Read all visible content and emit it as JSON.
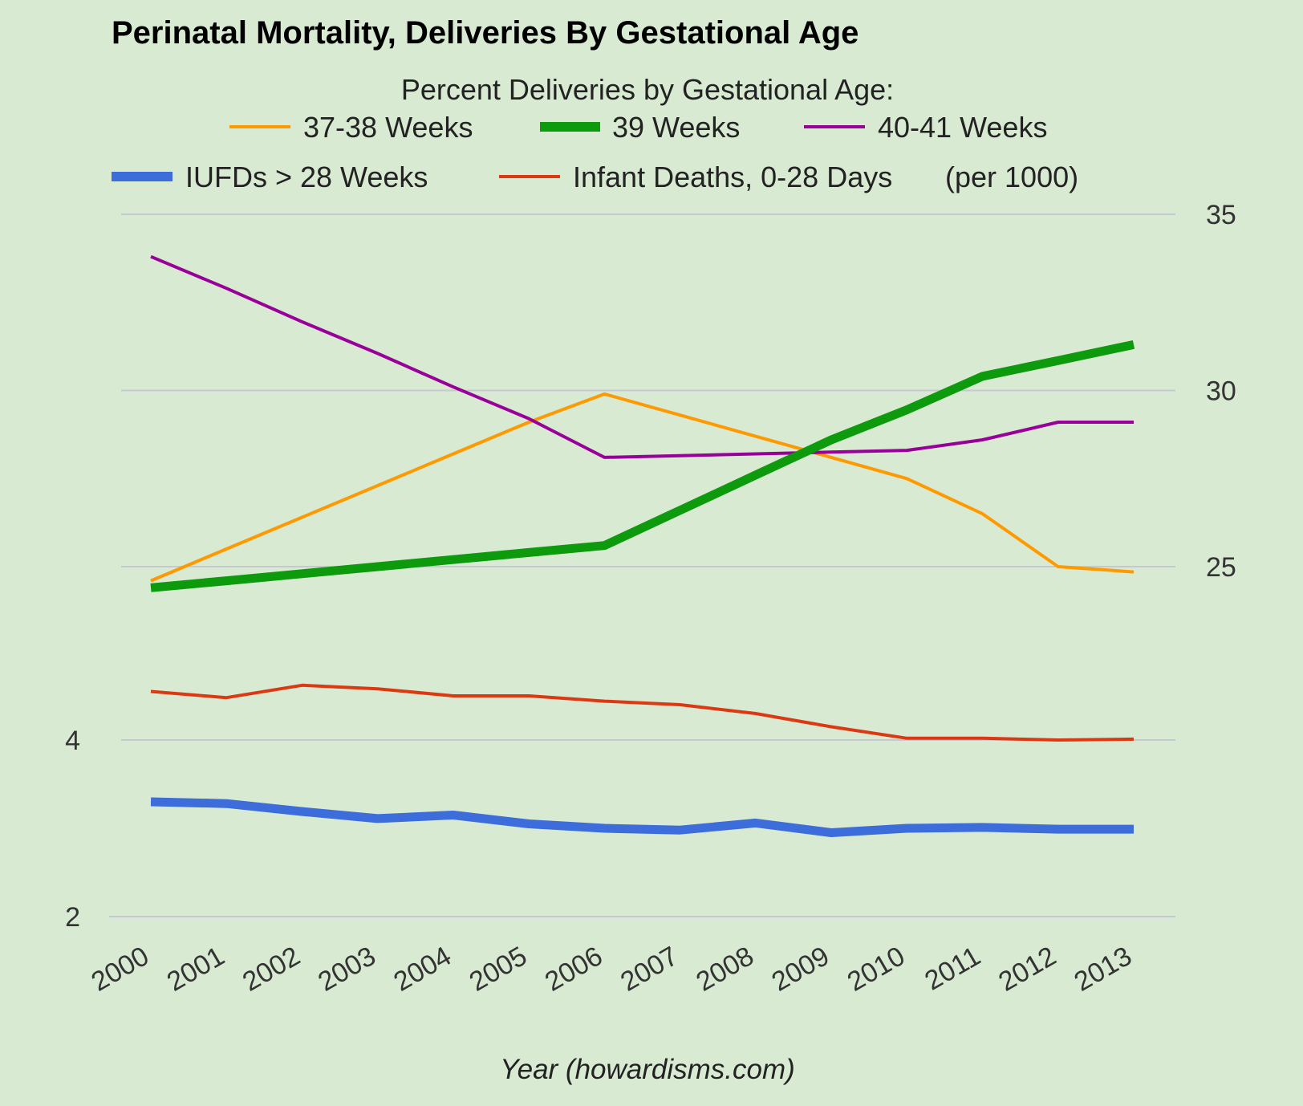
{
  "chart_data": {
    "type": "line",
    "title": "Perinatal Mortality, Deliveries By Gestational Age",
    "legend_heading": "Percent Deliveries by Gestational Age:",
    "legend_units_note": "(per 1000)",
    "xlabel": "Year (howardisms.com)",
    "x": [
      "2000",
      "2001",
      "2002",
      "2003",
      "2004",
      "2005",
      "2006",
      "2007",
      "2008",
      "2009",
      "2010",
      "2011",
      "2012",
      "2013"
    ],
    "right_axis": {
      "ticks": [
        "35",
        "30",
        "25"
      ],
      "ylim": [
        20,
        35
      ]
    },
    "left_axis": {
      "ticks": [
        "4",
        "2"
      ],
      "ylim": [
        2,
        6
      ]
    },
    "grid": true,
    "legend_position": "top",
    "series": [
      {
        "name": "37-38 Weeks",
        "axis": "right",
        "color": "#ff9900",
        "width": "thin",
        "values": [
          24.6,
          25.5,
          26.4,
          27.3,
          28.2,
          29.1,
          29.9,
          29.3,
          28.7,
          28.1,
          27.5,
          26.5,
          25.0,
          24.85
        ]
      },
      {
        "name": "39 Weeks",
        "axis": "right",
        "color": "#0d9a0d",
        "width": "thick",
        "values": [
          24.4,
          24.6,
          24.8,
          25.0,
          25.2,
          25.4,
          25.6,
          26.6,
          27.6,
          28.6,
          29.45,
          30.4,
          30.85,
          31.3
        ]
      },
      {
        "name": "40-41 Weeks",
        "axis": "right",
        "color": "#990099",
        "width": "thin",
        "values": [
          33.8,
          32.9,
          31.95,
          31.05,
          30.1,
          29.2,
          28.1,
          28.15,
          28.2,
          28.25,
          28.3,
          28.6,
          29.1,
          29.1
        ]
      },
      {
        "name": "IUFDs > 28 Weeks",
        "axis": "left",
        "color": "#3c6ddb",
        "width": "thick",
        "values": [
          3.3,
          3.28,
          3.19,
          3.11,
          3.15,
          3.05,
          3.0,
          2.98,
          3.06,
          2.95,
          3.0,
          3.01,
          2.99,
          2.99
        ]
      },
      {
        "name": "Infant Deaths, 0-28 Days",
        "axis": "left",
        "color": "#dc3912",
        "width": "thin",
        "values": [
          4.55,
          4.48,
          4.62,
          4.58,
          4.5,
          4.5,
          4.44,
          4.4,
          4.3,
          4.15,
          4.02,
          4.02,
          4.0,
          4.01
        ]
      }
    ],
    "colors": {
      "background": "#d9ead3",
      "grid": "#c5c9cf"
    }
  }
}
